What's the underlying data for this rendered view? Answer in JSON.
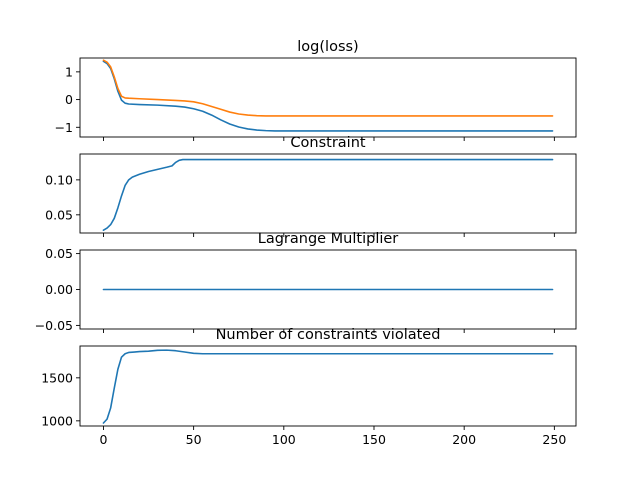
{
  "chart_data": [
    {
      "type": "line",
      "title": "log(loss)",
      "xlim": [
        -13,
        262
      ],
      "ylim": [
        -1.35,
        1.5
      ],
      "yticks": [
        {
          "value": 1,
          "label": "1"
        },
        {
          "value": 0,
          "label": "0"
        },
        {
          "value": -1,
          "label": "−1"
        }
      ],
      "series": [
        {
          "color": "#1f77b4",
          "x": [
            0,
            2,
            4,
            6,
            8,
            10,
            12,
            14,
            20,
            30,
            40,
            45,
            50,
            55,
            60,
            65,
            70,
            75,
            80,
            85,
            90,
            95,
            100,
            110,
            125,
            150,
            200,
            249
          ],
          "y": [
            1.38,
            1.3,
            1.12,
            0.75,
            0.3,
            -0.02,
            -0.13,
            -0.16,
            -0.18,
            -0.2,
            -0.24,
            -0.27,
            -0.33,
            -0.42,
            -0.56,
            -0.73,
            -0.88,
            -0.99,
            -1.06,
            -1.1,
            -1.12,
            -1.13,
            -1.13,
            -1.13,
            -1.13,
            -1.13,
            -1.13,
            -1.13
          ]
        },
        {
          "color": "#ff7f0e",
          "x": [
            0,
            2,
            4,
            6,
            8,
            10,
            12,
            14,
            20,
            30,
            40,
            45,
            50,
            55,
            60,
            65,
            70,
            75,
            80,
            85,
            90,
            95,
            100,
            110,
            125,
            150,
            200,
            249
          ],
          "y": [
            1.42,
            1.35,
            1.18,
            0.82,
            0.4,
            0.12,
            0.06,
            0.05,
            0.03,
            0.0,
            -0.03,
            -0.05,
            -0.08,
            -0.15,
            -0.25,
            -0.35,
            -0.45,
            -0.52,
            -0.56,
            -0.58,
            -0.59,
            -0.59,
            -0.59,
            -0.59,
            -0.59,
            -0.59,
            -0.59,
            -0.59
          ]
        }
      ]
    },
    {
      "type": "line",
      "title": "Constraint",
      "xlim": [
        -13,
        262
      ],
      "ylim": [
        0.024,
        0.137
      ],
      "yticks": [
        {
          "value": 0.1,
          "label": "0.10"
        },
        {
          "value": 0.05,
          "label": "0.05"
        }
      ],
      "series": [
        {
          "color": "#1f77b4",
          "x": [
            0,
            2,
            4,
            6,
            8,
            10,
            12,
            14,
            16,
            20,
            25,
            30,
            35,
            38,
            40,
            42,
            44,
            50,
            100,
            150,
            200,
            249
          ],
          "y": [
            0.028,
            0.031,
            0.036,
            0.045,
            0.06,
            0.077,
            0.092,
            0.1,
            0.104,
            0.108,
            0.112,
            0.115,
            0.118,
            0.12,
            0.125,
            0.128,
            0.129,
            0.129,
            0.129,
            0.129,
            0.129,
            0.129
          ]
        }
      ]
    },
    {
      "type": "line",
      "title": "Lagrange Multiplier",
      "xlim": [
        -13,
        262
      ],
      "ylim": [
        -0.055,
        0.055
      ],
      "yticks": [
        {
          "value": 0.05,
          "label": "0.05"
        },
        {
          "value": 0.0,
          "label": "0.00"
        },
        {
          "value": -0.05,
          "label": "−0.05"
        }
      ],
      "series": [
        {
          "color": "#1f77b4",
          "x": [
            0,
            249
          ],
          "y": [
            0,
            0
          ]
        }
      ]
    },
    {
      "type": "line",
      "title": "Number of constraints violated",
      "xlim": [
        -13,
        262
      ],
      "ylim": [
        940,
        1870
      ],
      "xticks": [
        {
          "value": 0,
          "label": "0"
        },
        {
          "value": 50,
          "label": "50"
        },
        {
          "value": 100,
          "label": "100"
        },
        {
          "value": 150,
          "label": "150"
        },
        {
          "value": 200,
          "label": "200"
        },
        {
          "value": 250,
          "label": "250"
        }
      ],
      "yticks": [
        {
          "value": 1500,
          "label": "1500"
        },
        {
          "value": 1000,
          "label": "1000"
        }
      ],
      "series": [
        {
          "color": "#1f77b4",
          "x": [
            0,
            2,
            4,
            6,
            8,
            10,
            12,
            14,
            17,
            20,
            25,
            30,
            35,
            40,
            45,
            50,
            55,
            100,
            150,
            200,
            249
          ],
          "y": [
            975,
            1020,
            1150,
            1380,
            1600,
            1740,
            1780,
            1795,
            1800,
            1805,
            1810,
            1820,
            1822,
            1815,
            1800,
            1785,
            1780,
            1780,
            1780,
            1780,
            1780
          ]
        }
      ]
    }
  ]
}
